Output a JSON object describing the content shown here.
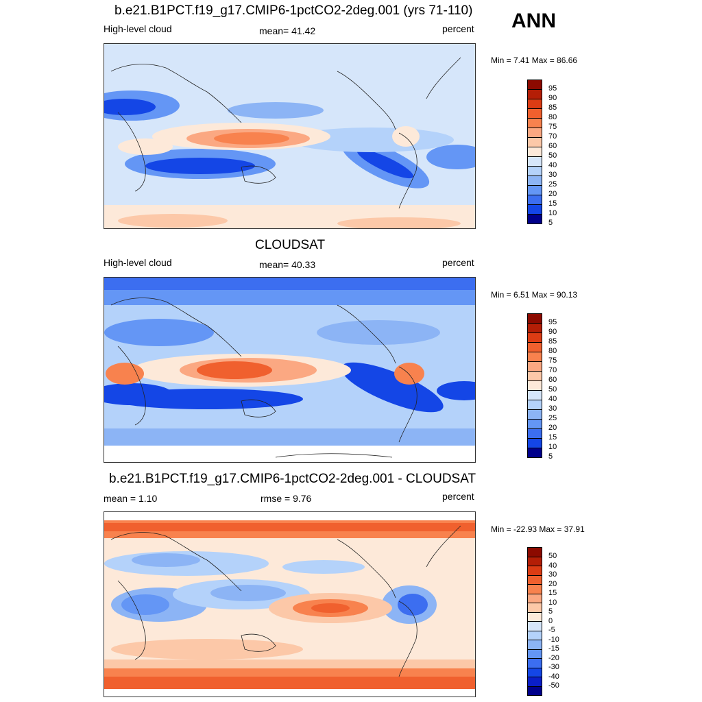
{
  "season": "ANN",
  "panels": [
    {
      "title": "b.e21.B1PCT.f19_g17.CMIP6-1pctCO2-2deg.001 (yrs 71-110)",
      "left_label": "High-level cloud",
      "center_label": "mean=  41.42",
      "right_label": "percent",
      "minmax": "Min =   7.41 Max =  86.66",
      "colorbar_labels": [
        "95",
        "90",
        "85",
        "80",
        "75",
        "70",
        "60",
        "50",
        "40",
        "30",
        "25",
        "20",
        "15",
        "10",
        "5"
      ]
    },
    {
      "title": "CLOUDSAT",
      "left_label": "High-level cloud",
      "center_label": "mean=  40.33",
      "right_label": "percent",
      "minmax": "Min =   6.51 Max =  90.13",
      "colorbar_labels": [
        "95",
        "90",
        "85",
        "80",
        "75",
        "70",
        "60",
        "50",
        "40",
        "30",
        "25",
        "20",
        "15",
        "10",
        "5"
      ]
    },
    {
      "title": "b.e21.B1PCT.f19_g17.CMIP6-1pctCO2-2deg.001 - CLOUDSAT",
      "left_label": "mean =   1.10",
      "center_label": "rmse =   9.76",
      "right_label": "percent",
      "minmax": "Min = -22.93 Max =  37.91",
      "colorbar_labels": [
        "50",
        "40",
        "30",
        "20",
        "15",
        "10",
        "5",
        "0",
        "-5",
        "-10",
        "-15",
        "-20",
        "-30",
        "-40",
        "-50"
      ]
    }
  ],
  "colors": {
    "abs_scale": [
      "#00008b",
      "#0a1ec8",
      "#1446e6",
      "#3c6ef0",
      "#6496f5",
      "#8cb4f5",
      "#b4d2fa",
      "#d6e6fa",
      "#fde9d9",
      "#fcc8a8",
      "#fba882",
      "#f8824e",
      "#f0602e",
      "#dc3c14",
      "#b41e06",
      "#8c0a00"
    ],
    "diff_scale": [
      "#00008b",
      "#0a1ec8",
      "#1446e6",
      "#3c6ef0",
      "#6496f5",
      "#8cb4f5",
      "#b4d2fa",
      "#d6e6fa",
      "#fde9d9",
      "#fcc8a8",
      "#fba882",
      "#f8824e",
      "#f0602e",
      "#dc3c14",
      "#b41e06",
      "#8c0a00"
    ]
  }
}
